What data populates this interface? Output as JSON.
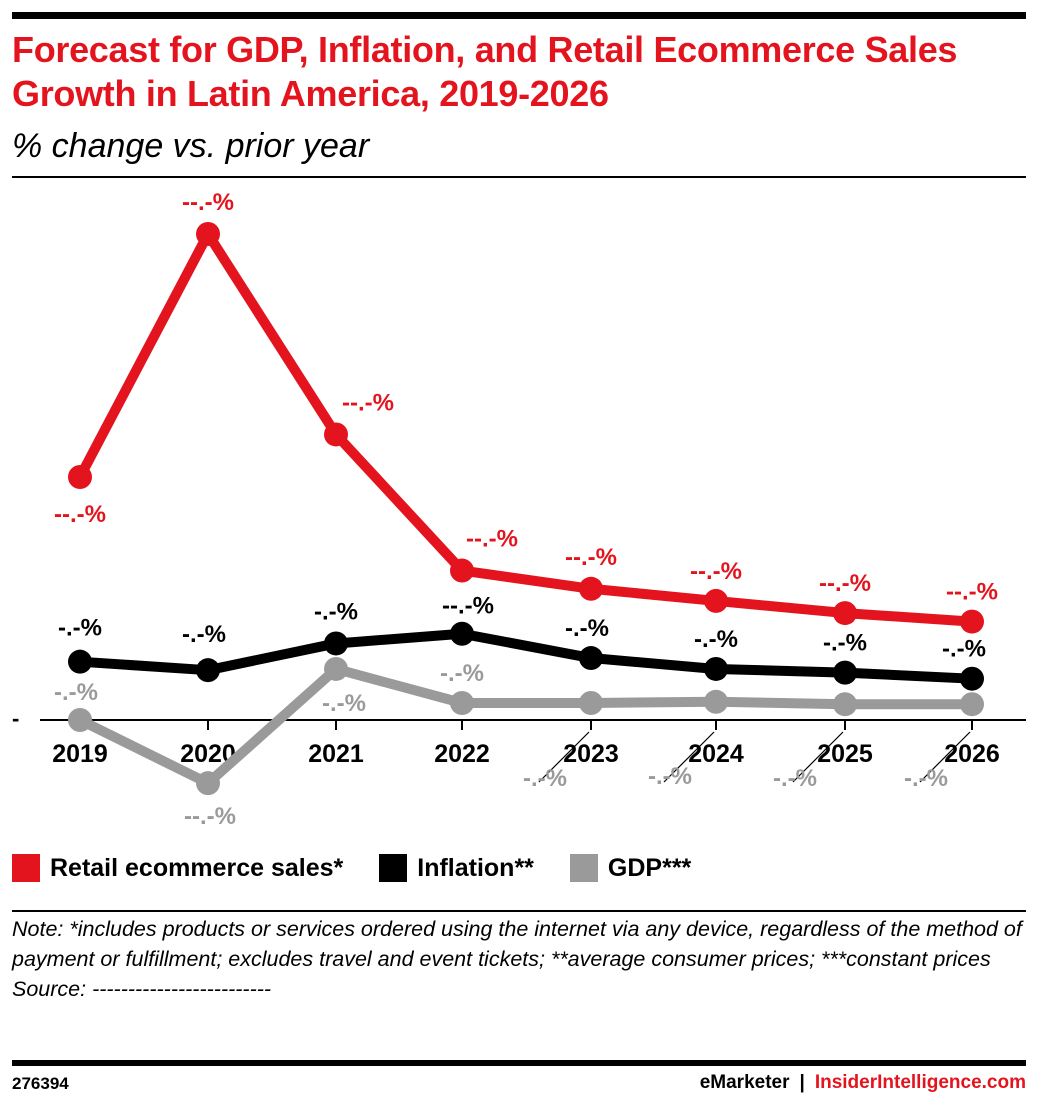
{
  "header": {
    "title": "Forecast for GDP, Inflation, and Retail Ecommerce Sales Growth in Latin America, 2019-2026",
    "subtitle": "% change vs. prior year"
  },
  "chart_data": {
    "type": "line",
    "title": "Forecast for GDP, Inflation, and Retail Ecommerce Sales Growth in Latin America, 2019-2026",
    "subtitle": "% change vs. prior year",
    "x": [
      "2019",
      "2020",
      "2021",
      "2022",
      "2023",
      "2024",
      "2025",
      "2026"
    ],
    "zero_tick_label": "-",
    "grid": false,
    "legend_position": "bottom-left",
    "series": [
      {
        "name": "Retail ecommerce sales*",
        "color": "#e4141e",
        "values": [
          20.0,
          40.0,
          23.5,
          12.3,
          10.8,
          9.8,
          8.8,
          8.1
        ],
        "labels": [
          "--.-%",
          "--.-%",
          "--.-%",
          "--.-%",
          "--.-%",
          "--.-%",
          "--.-%",
          "--.-%"
        ]
      },
      {
        "name": "Inflation**",
        "color": "#000000",
        "values": [
          4.8,
          4.1,
          6.3,
          7.1,
          5.1,
          4.2,
          3.9,
          3.4
        ],
        "labels": [
          "-.-%",
          "-.-%",
          "-.-%",
          "--.-%",
          "-.-%",
          "-.-%",
          "-.-%",
          "-.-%"
        ]
      },
      {
        "name": "GDP***",
        "color": "#9a9a9a",
        "values": [
          0.0,
          -5.2,
          4.2,
          1.4,
          1.4,
          1.5,
          1.3,
          1.3
        ],
        "labels": [
          "-.-%",
          "--.-%",
          "-.-%",
          "-.-%",
          "-.-%",
          "-.-%",
          "-.-%",
          "-.-%"
        ]
      }
    ]
  },
  "note": {
    "text": "Note: *includes products or services ordered using the internet via any device, regardless of the method of payment or fulfillment; excludes travel and event tickets; **average consumer prices; ***constant prices",
    "source": "Source: -------------------------"
  },
  "footer": {
    "chart_id": "276394",
    "brand": "eMarketer",
    "separator": "|",
    "site": "InsiderIntelligence.com"
  }
}
